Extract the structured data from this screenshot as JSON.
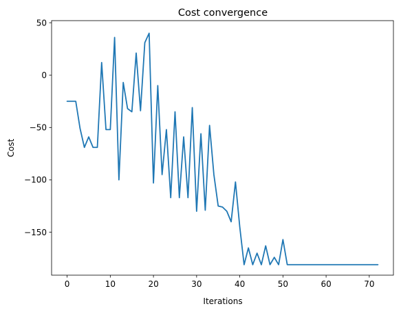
{
  "chart_data": {
    "type": "line",
    "title": "Cost convergence",
    "xlabel": "Iterations",
    "ylabel": "Cost",
    "xlim": [
      -3.6,
      75.6
    ],
    "ylim": [
      -191,
      52
    ],
    "xticks": [
      0,
      10,
      20,
      30,
      40,
      50,
      60,
      70
    ],
    "yticks": [
      -150,
      -100,
      -50,
      0,
      50
    ],
    "ytick_labels": [
      "−150",
      "−100",
      "−50",
      "0",
      "50"
    ],
    "grid": false,
    "legend": "none",
    "series": [
      {
        "color": "#1f77b4",
        "x": [
          0,
          1,
          2,
          3,
          4,
          5,
          6,
          7,
          8,
          9,
          10,
          11,
          12,
          13,
          14,
          15,
          16,
          17,
          18,
          19,
          20,
          21,
          22,
          23,
          24,
          25,
          26,
          27,
          28,
          29,
          30,
          31,
          32,
          33,
          34,
          35,
          36,
          37,
          38,
          39,
          40,
          41,
          42,
          43,
          44,
          45,
          46,
          47,
          48,
          49,
          50,
          51,
          52,
          53,
          54,
          55,
          56,
          57,
          58,
          59,
          60,
          61,
          62,
          63,
          64,
          65,
          66,
          67,
          68,
          69,
          70,
          71,
          72
        ],
        "y": [
          -25,
          -25,
          -25,
          -51,
          -69,
          -59,
          -69,
          -69,
          12,
          -52,
          -52,
          36,
          -100,
          -7,
          -32,
          -35,
          21,
          -34,
          31,
          40,
          -103,
          -10,
          -95,
          -52,
          -117,
          -35,
          -117,
          -59,
          -117,
          -31,
          -130,
          -56,
          -129,
          -48,
          -95,
          -125,
          -126,
          -130,
          -140,
          -102,
          -145,
          -181,
          -165,
          -181,
          -170,
          -181,
          -163,
          -181,
          -174,
          -181,
          -157,
          -181,
          -181,
          -181,
          -181,
          -181,
          -181,
          -181,
          -181,
          -181,
          -181,
          -181,
          -181,
          -181,
          -181,
          -181,
          -181,
          -181,
          -181,
          -181,
          -181,
          -181,
          -181
        ]
      }
    ]
  }
}
